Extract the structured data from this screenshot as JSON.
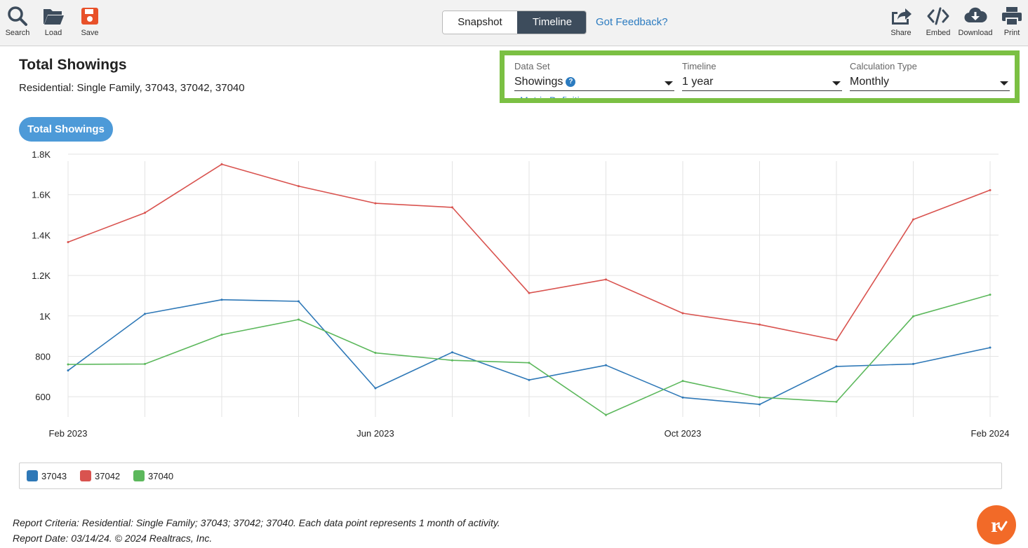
{
  "toolbar": {
    "search": "Search",
    "load": "Load",
    "save": "Save",
    "share": "Share",
    "embed": "Embed",
    "download": "Download",
    "print": "Print",
    "view_snapshot": "Snapshot",
    "view_timeline": "Timeline",
    "active_view": "Timeline",
    "feedback": "Got Feedback?"
  },
  "header": {
    "title": "Total Showings",
    "subtitle": "Residential: Single Family, 37043, 37042, 37040"
  },
  "controls": {
    "data_set_label": "Data Set",
    "data_set_value": "Showings",
    "timeline_label": "Timeline",
    "timeline_value": "1 year",
    "calc_label": "Calculation Type",
    "calc_value": "Monthly",
    "metric_link": "Metric Definitions"
  },
  "pill": "Total Showings",
  "chart_data": {
    "type": "line",
    "title": "Total Showings",
    "x": [
      "2023-02",
      "2023-03",
      "2023-04",
      "2023-05",
      "2023-06",
      "2023-07",
      "2023-08",
      "2023-09",
      "2023-10",
      "2023-11",
      "2023-12",
      "2024-01",
      "2024-02"
    ],
    "x_tick_labels": [
      "Feb 2023",
      "Jun 2023",
      "Oct 2023",
      "Feb 2024"
    ],
    "y_tick_labels": [
      "600",
      "800",
      "1K",
      "1.2K",
      "1.4K",
      "1.6K",
      "1.8K"
    ],
    "ylim": [
      500,
      1800
    ],
    "grid": true,
    "legend_placement": "bottom",
    "series": [
      {
        "name": "37043",
        "color": "#2e78b7",
        "values": [
          730,
          1010,
          1080,
          1072,
          642,
          820,
          683,
          756,
          596,
          562,
          750,
          762,
          843
        ]
      },
      {
        "name": "37042",
        "color": "#d9534f",
        "values": [
          1365,
          1510,
          1750,
          1642,
          1557,
          1537,
          1113,
          1180,
          1013,
          957,
          880,
          1477,
          1622
        ]
      },
      {
        "name": "37040",
        "color": "#5cb85c",
        "values": [
          760,
          762,
          907,
          982,
          817,
          780,
          768,
          510,
          678,
          597,
          575,
          998,
          1105
        ]
      }
    ]
  },
  "footer": {
    "criteria": "Report Criteria: Residential: Single Family; 37043; 37042; 37040. Each data point represents 1 month of activity.",
    "date": "Report Date: 03/14/24. © 2024 Realtracs, Inc."
  }
}
